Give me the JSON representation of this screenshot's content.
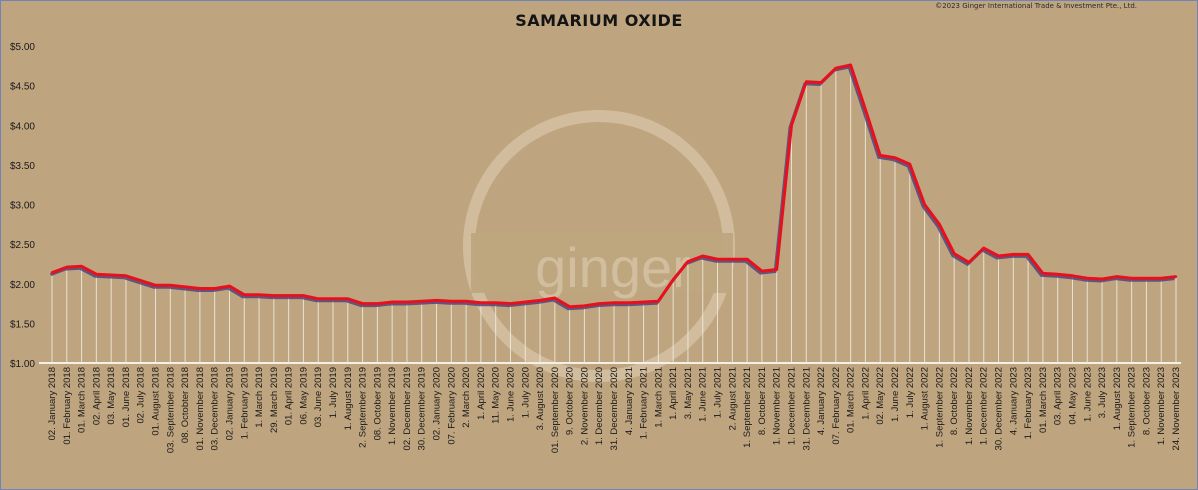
{
  "chart_data": {
    "type": "line",
    "title": "SAMARIUM OXIDE",
    "copyright": "©2023 Ginger International Trade & Investment Pte., Ltd.",
    "watermark": "ginger",
    "ylim": [
      1.0,
      5.0
    ],
    "yticks": [
      "$1.00",
      "$1.50",
      "$2.00",
      "$2.50",
      "$3.00",
      "$3.50",
      "$4.00",
      "$4.50",
      "$5.00"
    ],
    "ytick_values": [
      1.0,
      1.5,
      2.0,
      2.5,
      3.0,
      3.5,
      4.0,
      4.5,
      5.0
    ],
    "grid": false,
    "colors": {
      "line": "#e8101c",
      "shadow": "#4a3f7a",
      "drop": "#f2ece0",
      "baseline": "#f5f0e6"
    },
    "x": [
      "02. January 2018",
      "01. February 2018",
      "01. March 2018",
      "02. April 2018",
      "03. May 2018",
      "01. June 2018",
      "02. July 2018",
      "01. August 2018",
      "03. September 2018",
      "08. Octobter 2018",
      "01. November 2018",
      "03. December 2018",
      "02. January 2019",
      "1. February 2019",
      "1. March 2019",
      "29. March 2019",
      "01. April 2019",
      "06. May 2019",
      "03. June 2019",
      "1. July 2019",
      "1. August 2019",
      "2. September 2019",
      "08. October 2019",
      "1. November 2019",
      "02. December 2019",
      "30. December 2019",
      "02. January 2020",
      "07. February 2020",
      "2. March 2020",
      "1. April 2020",
      "11. May 2020",
      "1. June 2020",
      "1. July 2020",
      "3. August 2020",
      "01. September 2020",
      "9. October 2020",
      "2. November 2020",
      "1. December 2020",
      "31. December 2020",
      "4. January 2021",
      "1. February 2021",
      "1. March 2021",
      "1. April 2021",
      "3. May 2021",
      "1. June 2021",
      "1. July 2021",
      "2. August 2021",
      "1. September 2021",
      "8. October 2021",
      "1. November 2021",
      "1. December 2021",
      "31. December 2021",
      "4. January 2022",
      "07. February 2022",
      "01. March 2022",
      "1. April 2022",
      "02. May 2022",
      "1. June 2022",
      "1. July 2022",
      "1. August 2022",
      "1. September 2022",
      "8. October 2022",
      "1. November 2022",
      "1. December 2022",
      "30. December 2022",
      "4. January 2023",
      "1. February 2023",
      "01. March 2023",
      "03. April 2023",
      "04. May 2023",
      "1. June 2023",
      "3. July 2023",
      "1. August 2023",
      "1. September 2023",
      "8. October 2023",
      "1. November 2023",
      "24. November 2023"
    ],
    "values": [
      2.14,
      2.21,
      2.22,
      2.12,
      2.11,
      2.1,
      2.04,
      1.98,
      1.98,
      1.96,
      1.94,
      1.94,
      1.97,
      1.86,
      1.86,
      1.85,
      1.85,
      1.85,
      1.81,
      1.81,
      1.81,
      1.75,
      1.75,
      1.77,
      1.77,
      1.78,
      1.79,
      1.78,
      1.78,
      1.76,
      1.76,
      1.75,
      1.77,
      1.79,
      1.82,
      1.71,
      1.72,
      1.75,
      1.76,
      1.76,
      1.77,
      1.78,
      2.05,
      2.28,
      2.35,
      2.31,
      2.31,
      2.31,
      2.16,
      2.18,
      4.0,
      4.55,
      4.54,
      4.72,
      4.76,
      4.2,
      3.62,
      3.59,
      3.51,
      3.0,
      2.75,
      2.38,
      2.27,
      2.45,
      2.35,
      2.37,
      2.37,
      2.13,
      2.12,
      2.1,
      2.07,
      2.06,
      2.09,
      2.07,
      2.07,
      2.07,
      2.09
    ]
  }
}
